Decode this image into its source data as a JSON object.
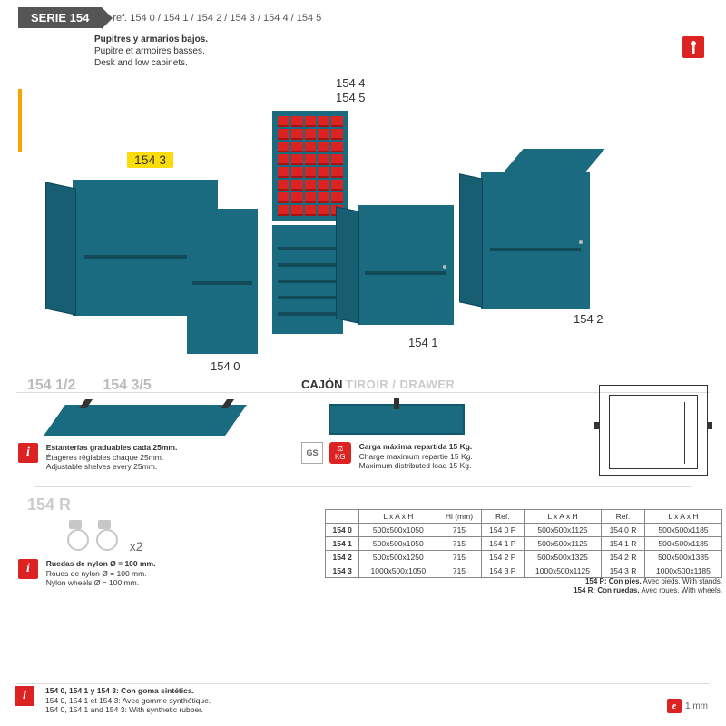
{
  "header": {
    "serie": "SERIE 154",
    "ref": "ref. 154 0 / 154 1 / 154 2 / 154 3 / 154 4 / 154 5"
  },
  "titles": {
    "es": "Pupitres y armarios bajos.",
    "fr": "Pupitre et armoires basses.",
    "en": "Desk and low cabinets."
  },
  "topLabels": {
    "l1544": "154 4",
    "l1545": "154 5"
  },
  "highlight": "154 3",
  "productLabels": {
    "l1540": "154 0",
    "l1541": "154 1",
    "l1542": "154 2"
  },
  "shelf": {
    "title_a": "154 1/2",
    "title_b": "154 3/5",
    "es": "Estanterías graduables cada 25mm.",
    "fr": "Étagères réglables chaque 25mm.",
    "en": "Adjustable shelves every 25mm."
  },
  "drawer": {
    "title_es": "CAJÓN",
    "title_rest": "TIROIR / DRAWER",
    "es": "Carga máxima repartida 15 Kg.",
    "fr": "Charge maximum répartie 15 Kg.",
    "en": "Maximum distributed load 15 Kg.",
    "gs": "GS",
    "kg": "KG"
  },
  "wheels": {
    "label": "154 R",
    "x2": "x2",
    "es": "Ruedas de nylon Ø = 100 mm.",
    "fr": "Roues de nylon Ø = 100 mm.",
    "en": "Nylon wheels Ø = 100 mm."
  },
  "table": {
    "headers": [
      "",
      "L x A x H",
      "Hi (mm)",
      "Ref.",
      "L x A x H",
      "Ref.",
      "L x A x H"
    ],
    "rows": [
      [
        "154 0",
        "500x500x1050",
        "715",
        "154 0 P",
        "500x500x1125",
        "154 0 R",
        "500x500x1185"
      ],
      [
        "154 1",
        "500x500x1050",
        "715",
        "154 1 P",
        "500x500x1125",
        "154 1 R",
        "500x500x1185"
      ],
      [
        "154 2",
        "500x500x1250",
        "715",
        "154 2 P",
        "500x500x1325",
        "154 2 R",
        "500x500x1385"
      ],
      [
        "154 3",
        "1000x500x1050",
        "715",
        "154 3 P",
        "1000x500x1125",
        "154 3 R",
        "1000x500x1185"
      ]
    ]
  },
  "tablenotes": {
    "p_es": "154 P: Con pies.",
    "p_rest": "Avec pieds. With stands.",
    "r_es": "154 R: Con ruedas.",
    "r_rest": "Avec roues. With wheels."
  },
  "footer": {
    "es": "154 0, 154 1 y 154 3: Con goma sintética.",
    "fr": "154 0, 154 1 et 154 3: Avec gomme synthétique.",
    "en": "154 0, 154 1 and 154 3: With synthetic rubber."
  },
  "thickness": "1 mm",
  "colors": {
    "teal": "#1a6a80",
    "red": "#d22",
    "yellow": "#f9dc0a"
  }
}
